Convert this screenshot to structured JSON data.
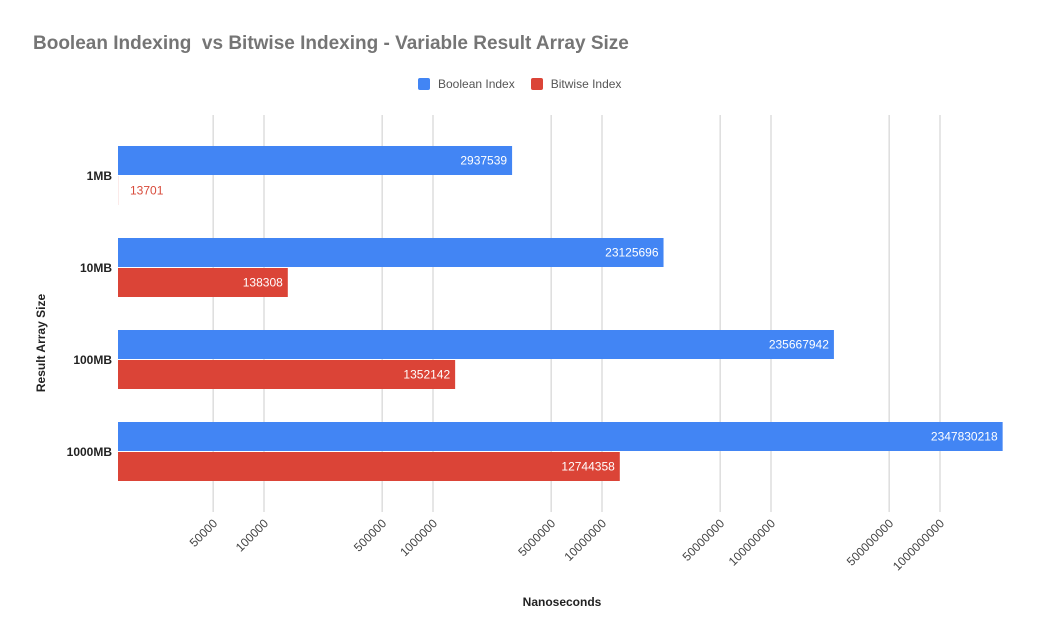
{
  "chart_data": {
    "type": "bar",
    "orientation": "horizontal",
    "title": "Boolean Indexing  vs Bitwise Indexing - Variable Result Array Size",
    "xlabel": "Nanoseconds",
    "ylabel": "Result Array Size",
    "x_scale": "log",
    "x_ticks": [
      50000,
      100000,
      500000,
      1000000,
      5000000,
      10000000,
      50000000,
      100000000,
      500000000,
      1000000000
    ],
    "x_tick_labels": [
      "50000",
      "100000",
      "500000",
      "1000000",
      "5000000",
      "10000000",
      "50000000",
      "100000000",
      "500000000",
      "1000000000"
    ],
    "grid": "vertical",
    "legend_position": "top",
    "categories": [
      "1MB",
      "10MB",
      "100MB",
      "1000MB"
    ],
    "series": [
      {
        "name": "Boolean Index",
        "color": "#4285f4",
        "values": [
          2937539,
          23125696,
          235667942,
          2347830218
        ]
      },
      {
        "name": "Bitwise Index",
        "color": "#db4437",
        "values": [
          13701,
          138308,
          1352142,
          12744358
        ]
      }
    ]
  }
}
